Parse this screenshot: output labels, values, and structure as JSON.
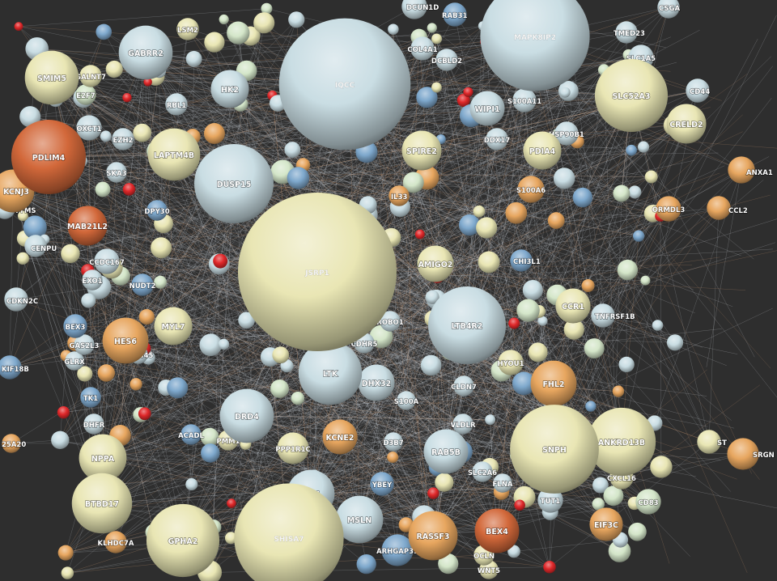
{
  "palette": {
    "background": "#2e2e2e",
    "edge_light": "#d9dde6",
    "edge_warm": "#d9a277",
    "node_colors": {
      "lightblue": "#c9dde3",
      "cream": "#e9e6b4",
      "blue": "#7ea8cc",
      "mint": "#d4e6c9",
      "orange": "#e7a65f",
      "darkorange": "#d2683a",
      "red": "#e0282a"
    }
  },
  "nodes": [
    {
      "id": "JSRP1",
      "label": "JSRP1",
      "color": "cream",
      "r": 1.0,
      "big": true
    },
    {
      "id": "IQCC",
      "label": "IQCC",
      "color": "lightblue",
      "r": 0.83,
      "big": true
    },
    {
      "id": "MAPK8IP2",
      "label": "MAPK8IP2",
      "color": "lightblue",
      "r": 0.69
    },
    {
      "id": "SHISA7",
      "label": "SHISA7",
      "color": "cream",
      "r": 0.69
    },
    {
      "id": "SNPH",
      "label": "SNPH",
      "color": "cream",
      "r": 0.56
    },
    {
      "id": "DUSP15",
      "label": "DUSP15",
      "color": "lightblue",
      "r": 0.5
    },
    {
      "id": "LTB4R2",
      "label": "LTB4R2",
      "color": "lightblue",
      "r": 0.49
    },
    {
      "id": "PDLIM4",
      "label": "PDLIM4",
      "color": "darkorange",
      "r": 0.47
    },
    {
      "id": "SLC52A3",
      "label": "SLC52A3",
      "color": "cream",
      "r": 0.46
    },
    {
      "id": "GPHA2",
      "label": "GPHA2",
      "color": "cream",
      "r": 0.46
    },
    {
      "id": "ANKRD13B",
      "label": "ANKRD13B",
      "color": "cream",
      "r": 0.43
    },
    {
      "id": "LTK",
      "label": "LTK",
      "color": "lightblue",
      "r": 0.4
    },
    {
      "id": "BTBD17",
      "label": "BTBD17",
      "color": "cream",
      "r": 0.38
    },
    {
      "id": "GABRR2",
      "label": "GABRR2",
      "color": "lightblue",
      "r": 0.34
    },
    {
      "id": "SMIM5",
      "label": "SMIM5",
      "color": "cream",
      "r": 0.34
    },
    {
      "id": "LAPTM4B",
      "label": "LAPTM4B",
      "color": "cream",
      "r": 0.33
    },
    {
      "id": "DRD4",
      "label": "DRD4",
      "color": "lightblue",
      "r": 0.34
    },
    {
      "id": "DN5",
      "label": "DN5",
      "color": "lightblue",
      "r": 0.3
    },
    {
      "id": "MSLN",
      "label": "MSLN",
      "color": "lightblue",
      "r": 0.3
    },
    {
      "id": "RASSF3",
      "label": "RASSF3",
      "color": "orange",
      "r": 0.31
    },
    {
      "id": "BEX4",
      "label": "BEX4",
      "color": "darkorange",
      "r": 0.28
    },
    {
      "id": "HES6",
      "label": "HES6",
      "color": "orange",
      "r": 0.29
    },
    {
      "id": "FHL2",
      "label": "FHL2",
      "color": "orange",
      "r": 0.29
    },
    {
      "id": "CRELD2",
      "label": "CRELD2",
      "color": "cream",
      "r": 0.25
    },
    {
      "id": "MAB21L2",
      "label": "MAB21L2",
      "color": "darkorange",
      "r": 0.25
    },
    {
      "id": "NPPA",
      "label": "NPPA",
      "color": "cream",
      "r": 0.3
    },
    {
      "id": "KCNJ3",
      "label": "KCNJ3",
      "color": "orange",
      "r": 0.27
    },
    {
      "id": "RAB5B",
      "label": "RAB5B",
      "color": "lightblue",
      "r": 0.28
    },
    {
      "id": "SPIRE2",
      "label": "SPIRE2",
      "color": "cream",
      "r": 0.25
    },
    {
      "id": "PDIA4",
      "label": "PDIA4",
      "color": "cream",
      "r": 0.24
    },
    {
      "id": "WIPI1",
      "label": "WIPI1",
      "color": "lightblue",
      "r": 0.22
    },
    {
      "id": "HK2",
      "label": "HK2",
      "color": "lightblue",
      "r": 0.24
    },
    {
      "id": "MYL7",
      "label": "MYL7",
      "color": "cream",
      "r": 0.24
    },
    {
      "id": "KCNE2",
      "label": "KCNE2",
      "color": "orange",
      "r": 0.22
    },
    {
      "id": "PPP1R1C",
      "label": "PPP1R1C",
      "color": "cream",
      "r": 0.2
    },
    {
      "id": "CCR1",
      "label": "CCR1",
      "color": "cream",
      "r": 0.22
    },
    {
      "id": "AMIGO2",
      "label": "AMIGO2",
      "color": "cream",
      "r": 0.23
    },
    {
      "id": "DHX32",
      "label": "DHX32",
      "color": "lightblue",
      "r": 0.23
    },
    {
      "id": "ARHGAP39",
      "label": "ARHGAP39",
      "color": "blue",
      "r": 0.2
    },
    {
      "id": "EIF3C",
      "label": "EIF3C",
      "color": "orange",
      "r": 0.21
    },
    {
      "id": "SRGN",
      "label": "SRGN",
      "color": "orange",
      "r": 0.2
    },
    {
      "id": "ORMDL3",
      "label": "ORMDL3",
      "color": "orange",
      "r": 0.16
    },
    {
      "id": "ANXA1",
      "label": "ANXA1",
      "color": "orange",
      "r": 0.17
    },
    {
      "id": "CCL2",
      "label": "CCL2",
      "color": "orange",
      "r": 0.15
    },
    {
      "id": "CD83",
      "label": "CD83",
      "color": "mint",
      "r": 0.16
    },
    {
      "id": "CXCL16",
      "label": "CXCL16",
      "color": "cream",
      "r": 0.15
    },
    {
      "id": "TUT1",
      "label": "TUT1",
      "color": "lightblue",
      "r": 0.16
    },
    {
      "id": "HYOU1",
      "label": "HYOU1",
      "color": "cream",
      "r": 0.16
    },
    {
      "id": "TNFRSF1B",
      "label": "TNFRSF1B",
      "color": "lightblue",
      "r": 0.15
    },
    {
      "id": "S100A6",
      "label": "S100A6",
      "color": "orange",
      "r": 0.17
    },
    {
      "id": "CHI3L1",
      "label": "CHI3L1",
      "color": "blue",
      "r": 0.14
    },
    {
      "id": "S100A11",
      "label": "S100A11",
      "color": "lightblue",
      "r": 0.15
    },
    {
      "id": "DDX17",
      "label": "DDX17",
      "color": "lightblue",
      "r": 0.14
    },
    {
      "id": "HSP90B1",
      "label": "HSP90B1",
      "color": "lightblue",
      "r": 0.15
    },
    {
      "id": "CD44",
      "label": "CD44",
      "color": "lightblue",
      "r": 0.15
    },
    {
      "id": "SLC1A5",
      "label": "SLC1A5",
      "color": "lightblue",
      "r": 0.16
    },
    {
      "id": "TMED23",
      "label": "TMED23",
      "color": "lightblue",
      "r": 0.14
    },
    {
      "id": "CSGA",
      "label": "CSGA",
      "color": "lightblue",
      "r": 0.14
    },
    {
      "id": "DCUN1D",
      "label": "DCUN1D",
      "color": "lightblue",
      "r": 0.16
    },
    {
      "id": "RAB31",
      "label": "RAB31",
      "color": "blue",
      "r": 0.15
    },
    {
      "id": "COL4A1",
      "label": "COL4A1",
      "color": "lightblue",
      "r": 0.15
    },
    {
      "id": "DCBLD2",
      "label": "DCBLD2",
      "color": "lightblue",
      "r": 0.14
    },
    {
      "id": "GALNT7",
      "label": "GALNT7",
      "color": "cream",
      "r": 0.14
    },
    {
      "id": "E2F7",
      "label": "E2F7",
      "color": "mint",
      "r": 0.13
    },
    {
      "id": "LSM2",
      "label": "LSM2",
      "color": "cream",
      "r": 0.14
    },
    {
      "id": "RBL1",
      "label": "RBL1",
      "color": "lightblue",
      "r": 0.14
    },
    {
      "id": "OXCT1",
      "label": "OXCT1",
      "color": "lightblue",
      "r": 0.16
    },
    {
      "id": "EZH2",
      "label": "EZH2",
      "color": "lightblue",
      "r": 0.14
    },
    {
      "id": "SKA3",
      "label": "SKA3",
      "color": "lightblue",
      "r": 0.13
    },
    {
      "id": "TYMS",
      "label": "TYMS",
      "color": "lightblue",
      "r": 0.13
    },
    {
      "id": "DPY30",
      "label": "DPY30",
      "color": "blue",
      "r": 0.13
    },
    {
      "id": "IL33",
      "label": "IL33",
      "color": "orange",
      "r": 0.13
    },
    {
      "id": "CENPU",
      "label": "CENPU",
      "color": "lightblue",
      "r": 0.14
    },
    {
      "id": "CCDC167",
      "label": "CCDC167",
      "color": "lightblue",
      "r": 0.16
    },
    {
      "id": "EXO1",
      "label": "EXO1",
      "color": "lightblue",
      "r": 0.13
    },
    {
      "id": "NUDT2",
      "label": "NUDT2",
      "color": "blue",
      "r": 0.14
    },
    {
      "id": "CDKN2C",
      "label": "CDKN2C",
      "color": "lightblue",
      "r": 0.15
    },
    {
      "id": "BEX3",
      "label": "BEX3",
      "color": "blue",
      "r": 0.15
    },
    {
      "id": "GAS2L3",
      "label": "GAS2L3",
      "color": "lightblue",
      "r": 0.13
    },
    {
      "id": "GLRX",
      "label": "GLRX",
      "color": "lightblue",
      "r": 0.12
    },
    {
      "id": "ZNF445",
      "label": "ZNF445",
      "color": "lightblue",
      "r": 0.12
    },
    {
      "id": "KIF18B",
      "label": "KIF18B",
      "color": "blue",
      "r": 0.15
    },
    {
      "id": "TK1",
      "label": "TK1",
      "color": "blue",
      "r": 0.13
    },
    {
      "id": "DHFR",
      "label": "DHFR",
      "color": "lightblue",
      "r": 0.13
    },
    {
      "id": "ACADL",
      "label": "ACADL",
      "color": "blue",
      "r": 0.13
    },
    {
      "id": "PMM1",
      "label": "PMM1",
      "color": "cream",
      "r": 0.13
    },
    {
      "id": "ROBO1",
      "label": "ROBO1",
      "color": "lightblue",
      "r": 0.13
    },
    {
      "id": "CDHR5",
      "label": "CDHR5",
      "color": "lightblue",
      "r": 0.13
    },
    {
      "id": "CLDN7",
      "label": "CLDN7",
      "color": "lightblue",
      "r": 0.13
    },
    {
      "id": "VLDLR",
      "label": "VLDLR",
      "color": "lightblue",
      "r": 0.13
    },
    {
      "id": "S100A",
      "label": "S100A",
      "color": "lightblue",
      "r": 0.12
    },
    {
      "id": "D3B7",
      "label": "D3B7",
      "color": "lightblue",
      "r": 0.12
    },
    {
      "id": "SLC2A6",
      "label": "SLC2A6",
      "color": "lightblue",
      "r": 0.13
    },
    {
      "id": "FLNA",
      "label": "FLNA",
      "color": "lightblue",
      "r": 0.12
    },
    {
      "id": "YBEY",
      "label": "YBEY",
      "color": "blue",
      "r": 0.15
    },
    {
      "id": "KLHDC7A",
      "label": "KLHDC7A",
      "color": "orange",
      "r": 0.14
    },
    {
      "id": "OCLN",
      "label": "OCLN",
      "color": "cream",
      "r": 0.13
    },
    {
      "id": "WNT5",
      "label": "WNT5",
      "color": "cream",
      "r": 0.12
    },
    {
      "id": "25A20",
      "label": "25A20",
      "color": "orange",
      "r": 0.12
    },
    {
      "id": "ST",
      "label": "ST",
      "color": "cream",
      "r": 0.15
    }
  ]
}
